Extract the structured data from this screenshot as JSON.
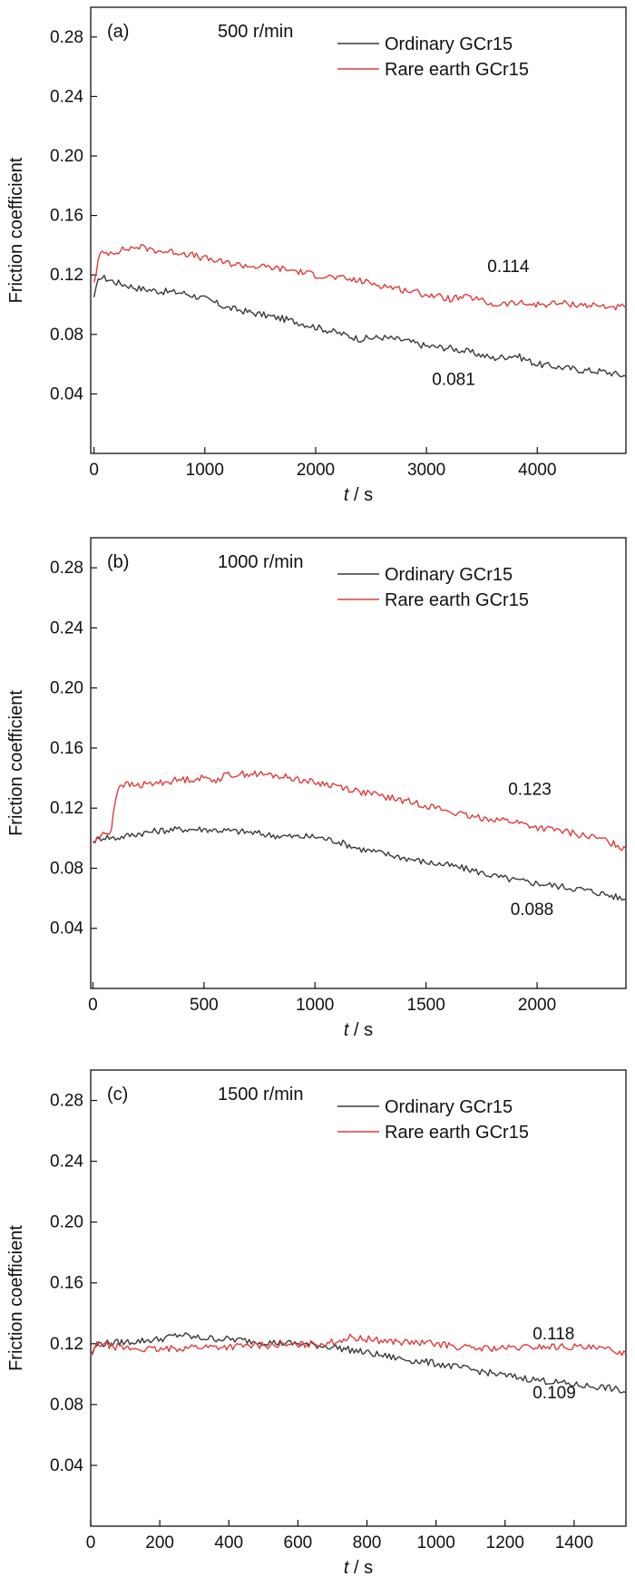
{
  "chart_data": [
    {
      "type": "line",
      "panel_label": "(a)",
      "speed_label": "500 r/min",
      "xlabel_var": "t",
      "xlabel_unit": " / s",
      "ylabel": "Friction coefficient",
      "xlim": [
        -30,
        4800
      ],
      "ylim": [
        0,
        0.3
      ],
      "xticks": [
        0,
        1000,
        2000,
        3000,
        4000
      ],
      "xtick_labels": [
        "0",
        "1000",
        "2000",
        "3000",
        "4000"
      ],
      "yticks": [
        0.04,
        0.08,
        0.12,
        0.16,
        0.2,
        0.24,
        0.28
      ],
      "ytick_labels": [
        "0.04",
        "0.08",
        "0.12",
        "0.16",
        "0.20",
        "0.24",
        "0.28"
      ],
      "legend_position": "top-right",
      "series": [
        {
          "name": "Ordinary GCr15",
          "color": "#3a3a3a",
          "x": [
            0,
            50,
            200,
            400,
            600,
            800,
            1000,
            1200,
            1400,
            1600,
            1800,
            2000,
            2200,
            2400,
            2600,
            2800,
            3000,
            3200,
            3400,
            3600,
            3800,
            4000,
            4200,
            4400,
            4600,
            4800
          ],
          "y": [
            0.105,
            0.119,
            0.115,
            0.111,
            0.109,
            0.108,
            0.104,
            0.098,
            0.095,
            0.092,
            0.089,
            0.085,
            0.081,
            0.077,
            0.078,
            0.076,
            0.072,
            0.071,
            0.068,
            0.064,
            0.066,
            0.06,
            0.058,
            0.056,
            0.055,
            0.052
          ],
          "end_label": "0.081"
        },
        {
          "name": "Rare earth GCr15",
          "color": "#e03c3c",
          "x": [
            0,
            50,
            200,
            400,
            600,
            800,
            1000,
            1200,
            1400,
            1600,
            1800,
            2000,
            2200,
            2400,
            2600,
            2800,
            3000,
            3200,
            3400,
            3600,
            3800,
            4000,
            4200,
            4400,
            4600,
            4800
          ],
          "y": [
            0.115,
            0.134,
            0.136,
            0.139,
            0.136,
            0.135,
            0.131,
            0.128,
            0.126,
            0.125,
            0.123,
            0.12,
            0.118,
            0.116,
            0.113,
            0.11,
            0.107,
            0.104,
            0.105,
            0.1,
            0.101,
            0.1,
            0.101,
            0.1,
            0.099,
            0.098
          ],
          "end_label": "0.114"
        }
      ]
    },
    {
      "type": "line",
      "panel_label": "(b)",
      "speed_label": "1000 r/min",
      "xlabel_var": "t",
      "xlabel_unit": " / s",
      "ylabel": "Friction coefficient",
      "xlim": [
        -10,
        2400
      ],
      "ylim": [
        0,
        0.3
      ],
      "xticks": [
        0,
        500,
        1000,
        1500,
        2000
      ],
      "xtick_labels": [
        "0",
        "500",
        "1000",
        "1500",
        "2000"
      ],
      "yticks": [
        0.04,
        0.08,
        0.12,
        0.16,
        0.2,
        0.24,
        0.28
      ],
      "ytick_labels": [
        "0.04",
        "0.08",
        "0.12",
        "0.16",
        "0.20",
        "0.24",
        "0.28"
      ],
      "legend_position": "top-right",
      "series": [
        {
          "name": "Ordinary GCr15",
          "color": "#3a3a3a",
          "x": [
            0,
            50,
            100,
            200,
            300,
            400,
            500,
            600,
            700,
            800,
            900,
            1000,
            1100,
            1200,
            1300,
            1400,
            1500,
            1600,
            1700,
            1800,
            1900,
            2000,
            2100,
            2200,
            2300,
            2400
          ],
          "y": [
            0.098,
            0.101,
            0.1,
            0.103,
            0.105,
            0.106,
            0.106,
            0.105,
            0.104,
            0.102,
            0.101,
            0.101,
            0.098,
            0.093,
            0.09,
            0.087,
            0.084,
            0.082,
            0.079,
            0.075,
            0.072,
            0.07,
            0.068,
            0.066,
            0.063,
            0.059
          ],
          "end_label": "0.088"
        },
        {
          "name": "Rare earth GCr15",
          "color": "#e03c3c",
          "x": [
            0,
            40,
            80,
            100,
            120,
            200,
            300,
            400,
            500,
            560,
            600,
            700,
            800,
            900,
            1000,
            1100,
            1200,
            1300,
            1400,
            1500,
            1600,
            1700,
            1800,
            1900,
            2000,
            2100,
            2200,
            2300,
            2400
          ],
          "y": [
            0.097,
            0.102,
            0.104,
            0.125,
            0.136,
            0.135,
            0.137,
            0.139,
            0.14,
            0.139,
            0.142,
            0.143,
            0.142,
            0.14,
            0.137,
            0.135,
            0.131,
            0.128,
            0.125,
            0.122,
            0.118,
            0.114,
            0.113,
            0.111,
            0.107,
            0.105,
            0.102,
            0.099,
            0.093
          ],
          "end_label": "0.123"
        }
      ]
    },
    {
      "type": "line",
      "panel_label": "(c)",
      "speed_label": "1500 r/min",
      "xlabel_var": "t",
      "xlabel_unit": " / s",
      "ylabel": "Friction coefficient",
      "xlim": [
        0,
        1550
      ],
      "ylim": [
        0,
        0.3
      ],
      "xticks": [
        0,
        200,
        400,
        600,
        800,
        1000,
        1200,
        1400
      ],
      "xtick_labels": [
        "0",
        "200",
        "400",
        "600",
        "800",
        "1000",
        "1200",
        "1400"
      ],
      "yticks": [
        0.04,
        0.08,
        0.12,
        0.16,
        0.2,
        0.24,
        0.28
      ],
      "ytick_labels": [
        "0.04",
        "0.08",
        "0.12",
        "0.16",
        "0.20",
        "0.24",
        "0.28"
      ],
      "legend_position": "top-right",
      "series": [
        {
          "name": "Ordinary GCr15",
          "color": "#3a3a3a",
          "x": [
            0,
            20,
            100,
            200,
            260,
            300,
            400,
            500,
            600,
            700,
            800,
            900,
            1000,
            1100,
            1200,
            1300,
            1400,
            1500,
            1550
          ],
          "y": [
            0.112,
            0.12,
            0.121,
            0.123,
            0.126,
            0.124,
            0.123,
            0.121,
            0.12,
            0.118,
            0.114,
            0.11,
            0.107,
            0.103,
            0.099,
            0.096,
            0.093,
            0.091,
            0.088
          ],
          "end_label": "0.109"
        },
        {
          "name": "Rare earth GCr15",
          "color": "#e03c3c",
          "x": [
            0,
            20,
            100,
            200,
            300,
            400,
            500,
            600,
            700,
            750,
            800,
            900,
            1000,
            1100,
            1200,
            1300,
            1400,
            1500,
            1550
          ],
          "y": [
            0.112,
            0.12,
            0.117,
            0.116,
            0.118,
            0.118,
            0.119,
            0.119,
            0.121,
            0.124,
            0.123,
            0.121,
            0.12,
            0.117,
            0.117,
            0.118,
            0.118,
            0.116,
            0.114
          ],
          "end_label": "0.118"
        }
      ]
    }
  ]
}
